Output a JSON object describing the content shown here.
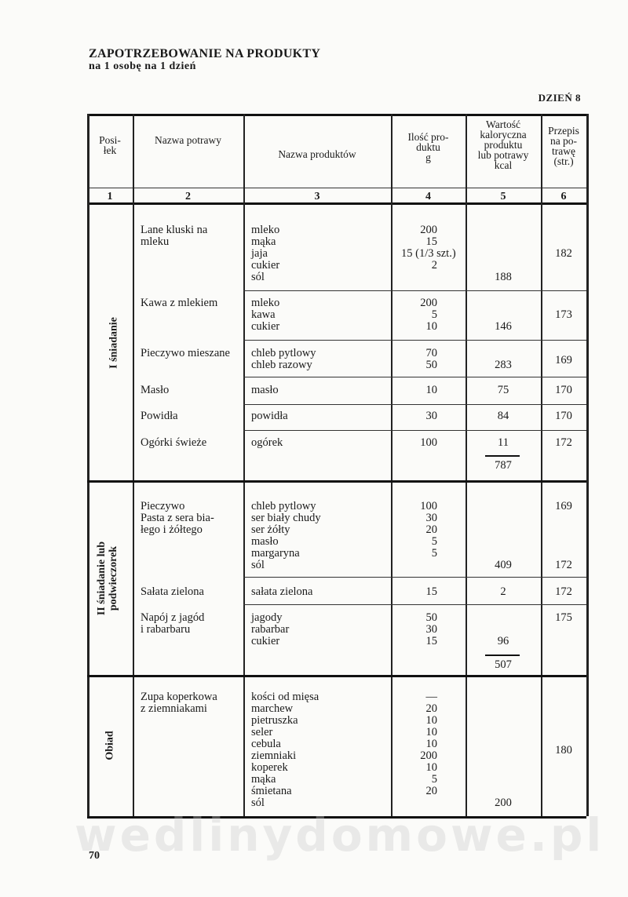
{
  "header": {
    "title": "ZAPOTRZEBOWANIE NA PRODUKTY",
    "subtitle": "na 1 osobę na 1 dzień",
    "day": "DZIEŃ 8"
  },
  "columns": [
    {
      "label": "Posi-\nłek",
      "number": "1"
    },
    {
      "label": "Nazwa potrawy",
      "number": "2"
    },
    {
      "label": "Nazwa produktów",
      "number": "3"
    },
    {
      "label": "Ilość pro-\nduktu\ng",
      "number": "4"
    },
    {
      "label": "Wartość\nkaloryczna\nproduktu\nlub potrawy\nkcal",
      "number": "5"
    },
    {
      "label": "Przepis\nna po-\ntrawę\n(str.)",
      "number": "6"
    }
  ],
  "sections": [
    {
      "meal": "I śniadanie",
      "total": "787",
      "dishes": [
        {
          "name": "Lane kluski na\nmleku",
          "products": [
            "mleko",
            "mąka",
            "jaja",
            "cukier",
            "sól"
          ],
          "quantities": [
            "200",
            "15",
            "15 (1/3 szt.)",
            "2",
            ""
          ],
          "kcal": "188",
          "recipe": [
            "182"
          ]
        },
        {
          "name": "Kawa z mlekiem",
          "products": [
            "mleko",
            "kawa",
            "cukier"
          ],
          "quantities": [
            "200",
            "5",
            "10"
          ],
          "kcal": "146",
          "recipe": [
            "173"
          ]
        },
        {
          "name": "Pieczywo mieszane",
          "products": [
            "chleb pytlowy",
            "chleb razowy"
          ],
          "quantities": [
            "70",
            "50"
          ],
          "kcal": "283",
          "recipe": [
            "169"
          ]
        },
        {
          "name": "Masło",
          "products": [
            "masło"
          ],
          "quantities": [
            "10"
          ],
          "kcal": "75",
          "recipe": [
            "170"
          ]
        },
        {
          "name": "Powidła",
          "products": [
            "powidła"
          ],
          "quantities": [
            "30"
          ],
          "kcal": "84",
          "recipe": [
            "170"
          ]
        },
        {
          "name": "Ogórki świeże",
          "products": [
            "ogórek"
          ],
          "quantities": [
            "100"
          ],
          "kcal": "11",
          "recipe": [
            "172"
          ]
        }
      ]
    },
    {
      "meal": "II śniadanie lub\npodwieczorek",
      "total": "507",
      "dishes": [
        {
          "name": "Pieczywo\nPasta z sera bia-\nłego i żółtego",
          "products": [
            "chleb pytlowy",
            "ser biały chudy",
            "ser żółty",
            "masło",
            "margaryna",
            "sól"
          ],
          "quantities": [
            "100",
            "30",
            "20",
            "5",
            "5",
            ""
          ],
          "kcal": "409",
          "recipe": [
            "169",
            "172"
          ]
        },
        {
          "name": "Sałata zielona",
          "products": [
            "sałata zielona"
          ],
          "quantities": [
            "15"
          ],
          "kcal": "2",
          "recipe": [
            "172"
          ]
        },
        {
          "name": "Napój z jagód\ni rabarbaru",
          "products": [
            "jagody",
            "rabarbar",
            "cukier"
          ],
          "quantities": [
            "50",
            "30",
            "15"
          ],
          "kcal": "96",
          "recipe": [
            "175"
          ]
        }
      ]
    },
    {
      "meal": "Obiad",
      "total": "",
      "dishes": [
        {
          "name": "Zupa koperkowa\nz ziemniakami",
          "products": [
            "kości od mięsa",
            "marchew",
            "pietruszka",
            "seler",
            "cebula",
            "ziemniaki",
            "koperek",
            "mąka",
            "śmietana",
            "sól"
          ],
          "quantities": [
            "—",
            "20",
            "10",
            "10",
            "10",
            "200",
            "10",
            "5",
            "20",
            ""
          ],
          "kcal": "200",
          "recipe": [
            "180"
          ]
        }
      ]
    }
  ],
  "page_number": "70",
  "watermark": "wedlinydomowe.pl"
}
